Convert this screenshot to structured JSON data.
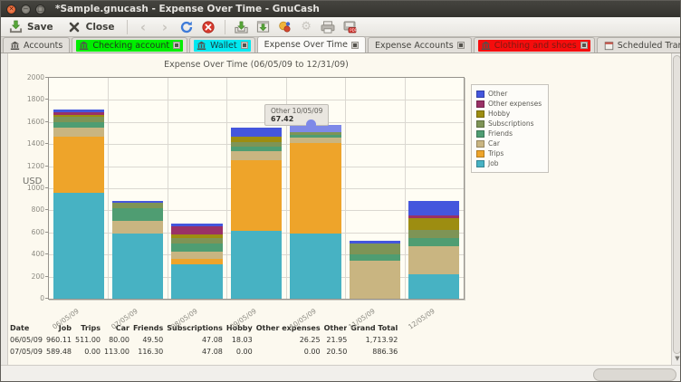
{
  "window": {
    "title": "*Sample.gnucash - Expense Over Time - GnuCash"
  },
  "toolbar": {
    "save_label": "Save",
    "close_label": "Close"
  },
  "tabs": [
    {
      "label": "Accounts",
      "icon": "bank",
      "highlight": null,
      "text_color": null,
      "closable": false,
      "active": false
    },
    {
      "label": "Checking account",
      "icon": "bank",
      "highlight": "#00ee00",
      "text_color": "#1d3a1d",
      "closable": true,
      "active": false
    },
    {
      "label": "Wallet",
      "icon": "bank",
      "highlight": "#00e8f0",
      "text_color": "#173c40",
      "closable": true,
      "active": false
    },
    {
      "label": "Expense Over Time",
      "icon": null,
      "highlight": null,
      "text_color": null,
      "closable": true,
      "active": true
    },
    {
      "label": "Expense Accounts",
      "icon": null,
      "highlight": null,
      "text_color": null,
      "closable": true,
      "active": false
    },
    {
      "label": "Clothing and shoes",
      "icon": "bank",
      "highlight": "#f60d0d",
      "text_color": "#7c1a12",
      "closable": true,
      "active": false
    },
    {
      "label": "Scheduled Transactions",
      "icon": "calendar",
      "highlight": null,
      "text_color": null,
      "closable": true,
      "active": false
    }
  ],
  "chart_data": {
    "type": "bar",
    "stacked": true,
    "title": "Expense Over Time (06/05/09 to 12/31/09)",
    "ylabel": "USD",
    "ylim": [
      0,
      2000
    ],
    "ytick_step": 200,
    "grid": true,
    "legend_position": "right",
    "categories": [
      "06/05/09",
      "07/05/09",
      "08/05/09",
      "09/05/09",
      "10/05/09",
      "11/05/09",
      "12/05/09"
    ],
    "series": [
      {
        "name": "Job",
        "color": "#47b2c3",
        "values": [
          960.11,
          589.48,
          310,
          615,
          590,
          0,
          220
        ]
      },
      {
        "name": "Trips",
        "color": "#eea42a",
        "values": [
          511.0,
          0.0,
          52,
          640,
          820,
          0,
          0
        ]
      },
      {
        "name": "Car",
        "color": "#c9b581",
        "values": [
          80.0,
          113.0,
          65,
          82,
          48,
          345,
          252
        ]
      },
      {
        "name": "Friends",
        "color": "#4f9d72",
        "values": [
          49.5,
          116.3,
          74,
          44,
          28,
          55,
          76
        ]
      },
      {
        "name": "Subscriptions",
        "color": "#7e9456",
        "values": [
          47.08,
          47.08,
          47,
          38,
          20,
          100,
          77
        ]
      },
      {
        "name": "Hobby",
        "color": "#9d8d11",
        "values": [
          18.03,
          0.0,
          35,
          48,
          0,
          0,
          106
        ]
      },
      {
        "name": "Other expenses",
        "color": "#9a3166",
        "values": [
          26.25,
          0.0,
          72,
          0,
          0,
          0,
          22
        ]
      },
      {
        "name": "Other",
        "color": "#4456dd",
        "values": [
          21.95,
          20.5,
          27,
          82,
          67.42,
          22,
          129
        ]
      }
    ],
    "highlight": {
      "series": "Other",
      "category_index": 4,
      "color": "#7e89e8"
    }
  },
  "tooltip": {
    "label": "Other 10/05/09",
    "value": "67.42"
  },
  "summary_table": {
    "headers": [
      "Date",
      "Job",
      "Trips",
      "Car",
      "Friends",
      "Subscriptions",
      "Hobby",
      "Other expenses",
      "Other",
      "Grand Total"
    ],
    "rows": [
      [
        "06/05/09",
        "960.11",
        "511.00",
        "80.00",
        "49.50",
        "47.08",
        "18.03",
        "26.25",
        "21.95",
        "1,713.92"
      ],
      [
        "07/05/09",
        "589.48",
        "0.00",
        "113.00",
        "116.30",
        "47.08",
        "0.00",
        "0.00",
        "20.50",
        "886.36"
      ]
    ]
  }
}
